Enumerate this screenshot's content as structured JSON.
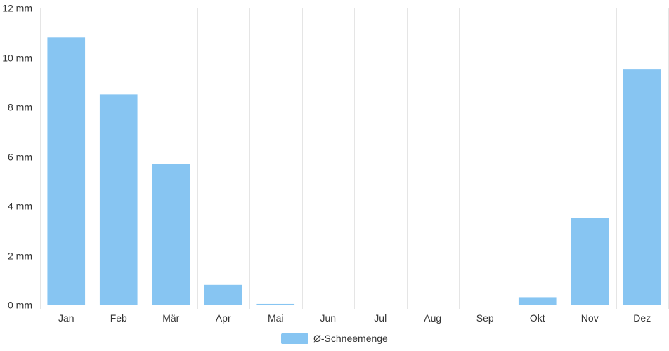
{
  "chart_data": {
    "type": "bar",
    "categories": [
      "Jan",
      "Feb",
      "Mär",
      "Apr",
      "Mai",
      "Jun",
      "Jul",
      "Aug",
      "Sep",
      "Okt",
      "Nov",
      "Dez"
    ],
    "series": [
      {
        "name": "Ø-Schneemenge",
        "values": [
          10.8,
          8.5,
          5.7,
          0.8,
          0.03,
          0,
          0,
          0,
          0,
          0.3,
          3.5,
          9.5
        ],
        "color": "#87c5f2"
      }
    ],
    "y_unit": "mm",
    "ylim": [
      0,
      12
    ],
    "yticks": [
      0,
      2,
      4,
      6,
      8,
      10,
      12
    ],
    "ytick_labels": [
      "0 mm",
      "2 mm",
      "4 mm",
      "6 mm",
      "8 mm",
      "10 mm",
      "12 mm"
    ],
    "grid": true,
    "legend_position": "bottom-center"
  }
}
